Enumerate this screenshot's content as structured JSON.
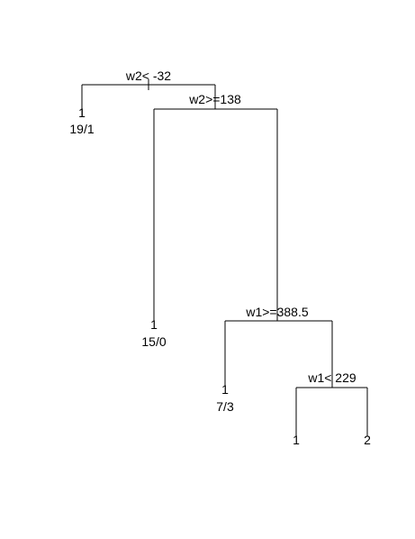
{
  "tree": {
    "splits": [
      {
        "id": "s1",
        "label": "w2< -32"
      },
      {
        "id": "s2",
        "label": "w2>=138"
      },
      {
        "id": "s3",
        "label": "w1>=388.5"
      },
      {
        "id": "s4",
        "label": "w1< 229"
      }
    ],
    "leaves": [
      {
        "id": "l1",
        "class": "1",
        "counts": "19/1"
      },
      {
        "id": "l2",
        "class": "1",
        "counts": "15/0"
      },
      {
        "id": "l3",
        "class": "1",
        "counts": "7/3"
      },
      {
        "id": "l4",
        "class": "1",
        "counts": ""
      },
      {
        "id": "l5",
        "class": "2",
        "counts": ""
      }
    ]
  }
}
